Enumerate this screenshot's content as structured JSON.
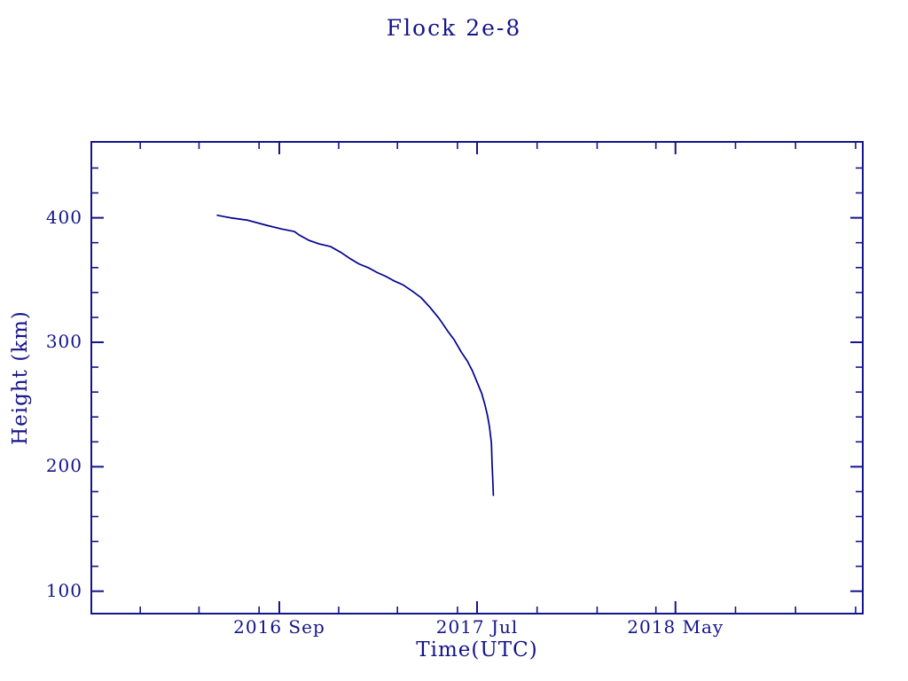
{
  "ink_color": "#14148c",
  "line_color": "#000090",
  "background_color": "#ffffff",
  "chart_data": {
    "type": "line",
    "title": "Flock 2e-8",
    "xlabel": "Time(UTC)",
    "ylabel": "Height (km)",
    "x_unit": "days since 2015-11-18 (left edge of plot)",
    "xlim": [
      0,
      1182
    ],
    "ylim": [
      82,
      461
    ],
    "grid": false,
    "legend": "none",
    "x_major_ticks": [
      {
        "day": 288,
        "label": "2016 Sep",
        "date": "2016-09-01"
      },
      {
        "day": 591,
        "label": "2017 Jul",
        "date": "2017-07-01"
      },
      {
        "day": 895,
        "label": "2018 May",
        "date": "2018-05-01"
      }
    ],
    "x_minor_tick_days": [
      75,
      165,
      257,
      379,
      469,
      561,
      683,
      775,
      865,
      987,
      1079,
      1171
    ],
    "y_major_ticks": [
      {
        "value": 100,
        "label": "100"
      },
      {
        "value": 200,
        "label": "200"
      },
      {
        "value": 300,
        "label": "300"
      },
      {
        "value": 400,
        "label": "400"
      }
    ],
    "y_minor_tick_values": [
      120,
      140,
      160,
      180,
      220,
      240,
      260,
      280,
      320,
      340,
      360,
      380,
      420,
      440
    ],
    "series": [
      {
        "name": "Flock 2e-8 orbital height",
        "start_date_approx": "2016-05-29",
        "end_date_approx": "2017-07-25",
        "points_day_km": [
          [
            193,
            402
          ],
          [
            213,
            400
          ],
          [
            240,
            398
          ],
          [
            268,
            394
          ],
          [
            292,
            391
          ],
          [
            311,
            389
          ],
          [
            319,
            386
          ],
          [
            333,
            382
          ],
          [
            349,
            379
          ],
          [
            366,
            377
          ],
          [
            383,
            372
          ],
          [
            397,
            367
          ],
          [
            410,
            363
          ],
          [
            424,
            360
          ],
          [
            438,
            356
          ],
          [
            451,
            353
          ],
          [
            465,
            349
          ],
          [
            478,
            346
          ],
          [
            492,
            341
          ],
          [
            505,
            336
          ],
          [
            519,
            328
          ],
          [
            533,
            319
          ],
          [
            546,
            309
          ],
          [
            556,
            302
          ],
          [
            567,
            292
          ],
          [
            576,
            285
          ],
          [
            584,
            277
          ],
          [
            591,
            268
          ],
          [
            598,
            259
          ],
          [
            603,
            250
          ],
          [
            607,
            241
          ],
          [
            610,
            232
          ],
          [
            613,
            219
          ],
          [
            614,
            203
          ],
          [
            615,
            190
          ],
          [
            616,
            177
          ]
        ]
      }
    ]
  }
}
